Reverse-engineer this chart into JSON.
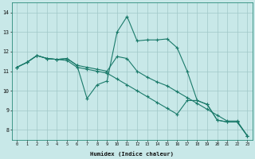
{
  "xlabel": "Humidex (Indice chaleur)",
  "ylabel": "",
  "background_color": "#c8e8e8",
  "grid_color": "#a0c8c8",
  "line_color": "#1a7a6a",
  "x_values": [
    0,
    1,
    2,
    3,
    4,
    5,
    6,
    7,
    8,
    9,
    10,
    11,
    12,
    13,
    14,
    15,
    16,
    17,
    18,
    19,
    20,
    21,
    22,
    23
  ],
  "line1": [
    11.2,
    11.45,
    11.8,
    11.65,
    11.6,
    11.65,
    11.3,
    9.6,
    10.3,
    10.5,
    13.0,
    13.8,
    12.55,
    12.6,
    12.6,
    12.65,
    12.2,
    11.0,
    9.5,
    9.3,
    8.5,
    8.4,
    8.4,
    7.7
  ],
  "line2": [
    11.2,
    11.45,
    11.8,
    11.65,
    11.6,
    11.55,
    11.2,
    11.1,
    11.0,
    10.9,
    10.6,
    10.3,
    10.0,
    9.7,
    9.4,
    9.1,
    8.8,
    9.5,
    9.5,
    9.3,
    8.5,
    8.4,
    8.4,
    7.7
  ],
  "line3": [
    11.2,
    11.45,
    11.8,
    11.65,
    11.6,
    11.65,
    11.3,
    11.2,
    11.1,
    11.0,
    11.75,
    11.65,
    11.0,
    10.7,
    10.45,
    10.25,
    9.95,
    9.65,
    9.35,
    9.05,
    8.75,
    8.45,
    8.45,
    7.7
  ],
  "ylim": [
    7.5,
    14.5
  ],
  "xlim": [
    -0.5,
    23.5
  ],
  "yticks": [
    8,
    9,
    10,
    11,
    12,
    13,
    14
  ],
  "xticks": [
    0,
    1,
    2,
    3,
    4,
    5,
    6,
    7,
    8,
    9,
    10,
    11,
    12,
    13,
    14,
    15,
    16,
    17,
    18,
    19,
    20,
    21,
    22,
    23
  ]
}
